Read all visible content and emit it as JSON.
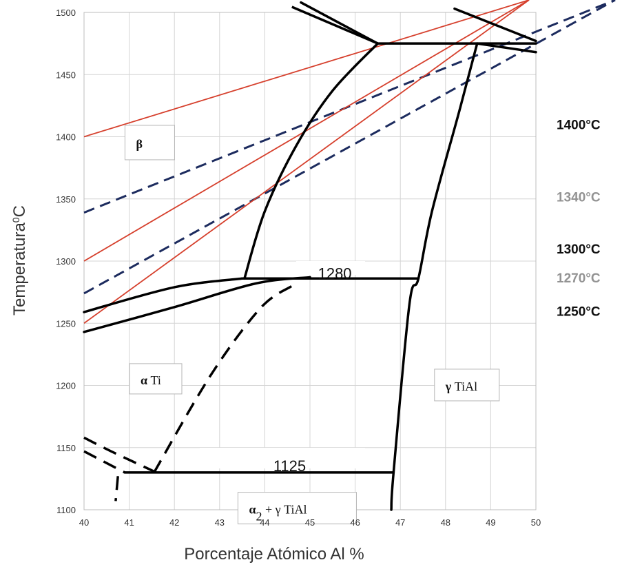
{
  "chart_data": {
    "type": "phase-diagram",
    "xlabel": "Porcentaje Atómico Al %",
    "ylabel_text": "Temperatura",
    "ylabel_sup": "0",
    "ylabel_unit": "C",
    "xlim": [
      40,
      50
    ],
    "ylim": [
      1100,
      1500
    ],
    "x_ticks": [
      40,
      41,
      42,
      43,
      44,
      45,
      46,
      47,
      48,
      49,
      50
    ],
    "y_ticks": [
      1100,
      1150,
      1200,
      1250,
      1300,
      1350,
      1400,
      1450,
      1500
    ],
    "grid": true,
    "phase_labels": [
      {
        "greek": "β",
        "rest": "",
        "x": 41.15,
        "y": 1392
      },
      {
        "greek": "α",
        "rest": " Ti",
        "x": 41.25,
        "y": 1202
      },
      {
        "greek": "γ",
        "rest": " TiAl",
        "x": 48.0,
        "y": 1197
      },
      {
        "greek": "α",
        "sub": "2",
        "rest": " + γ TiAl",
        "x": 43.65,
        "y": 1098
      }
    ],
    "invariant_labels": [
      {
        "text": "1280",
        "x": 45.55,
        "y": 1286
      },
      {
        "text": "1125",
        "x": 44.55,
        "y": 1131
      }
    ],
    "phase_boundaries": [
      {
        "name": "beta-alpha-left",
        "style": "solid",
        "points": [
          [
            41.3,
            1430
          ],
          [
            42.0,
            1478
          ],
          [
            43.3,
            1494
          ]
        ]
      },
      {
        "name": "beta-alpha-right",
        "style": "solid",
        "points": [
          [
            44.2,
            1516
          ],
          [
            44.8,
            1516
          ],
          [
            45.3,
            1516
          ]
        ]
      },
      {
        "name": "peritectic-1475-left",
        "style": "solid",
        "points": [
          [
            44.8,
            1508
          ],
          [
            46.5,
            1475
          ]
        ]
      },
      {
        "name": "peritectic-1475-line",
        "style": "solid",
        "points": [
          [
            46.5,
            1475
          ],
          [
            50.0,
            1475
          ]
        ]
      },
      {
        "name": "upper-right-1",
        "style": "solid",
        "points": [
          [
            48.2,
            1503
          ],
          [
            50.0,
            1477
          ]
        ]
      },
      {
        "name": "upper-right-2",
        "style": "solid",
        "points": [
          [
            48.7,
            1475
          ],
          [
            50.0,
            1468
          ]
        ]
      },
      {
        "name": "alpha-beta-transus",
        "style": "solid",
        "points": [
          [
            43.55,
            1286
          ],
          [
            44.0,
            1340
          ],
          [
            44.7,
            1393
          ],
          [
            45.5,
            1437
          ],
          [
            46.5,
            1475
          ]
        ]
      },
      {
        "name": "gamma-solvus",
        "style": "solid",
        "points": [
          [
            46.8,
            1100
          ],
          [
            46.85,
            1130
          ],
          [
            47.2,
            1265
          ],
          [
            47.4,
            1286
          ],
          [
            47.7,
            1340
          ],
          [
            48.3,
            1420
          ],
          [
            48.7,
            1475
          ]
        ]
      },
      {
        "name": "eutectoid-1280",
        "style": "solid",
        "points": [
          [
            43.5,
            1286
          ],
          [
            47.4,
            1286
          ]
        ]
      },
      {
        "name": "alpha-upper",
        "style": "solid",
        "points": [
          [
            40.0,
            1259
          ],
          [
            42.0,
            1279
          ],
          [
            43.5,
            1286
          ]
        ]
      },
      {
        "name": "alpha-lower",
        "style": "solid",
        "points": [
          [
            40.0,
            1243
          ],
          [
            42.0,
            1263
          ],
          [
            43.8,
            1282
          ],
          [
            45.0,
            1287
          ]
        ]
      },
      {
        "name": "eutectoid-1125",
        "style": "solid",
        "points": [
          [
            40.9,
            1130
          ],
          [
            46.85,
            1130
          ]
        ]
      },
      {
        "name": "alpha2-dashed",
        "style": "dashed",
        "points": [
          [
            41.55,
            1130
          ],
          [
            42.8,
            1208
          ],
          [
            43.9,
            1262
          ],
          [
            44.6,
            1280
          ]
        ]
      },
      {
        "name": "alpha2-left-dashed-1",
        "style": "dashed",
        "points": [
          [
            40.0,
            1158
          ],
          [
            40.6,
            1147
          ],
          [
            41.6,
            1130
          ]
        ]
      },
      {
        "name": "alpha2-left-dashed-2",
        "style": "dashed",
        "points": [
          [
            40.0,
            1147
          ],
          [
            40.9,
            1130
          ]
        ]
      },
      {
        "name": "alpha2-bottom-dashed",
        "style": "dashed",
        "points": [
          [
            40.75,
            1127
          ],
          [
            40.7,
            1107
          ]
        ]
      }
    ],
    "annealing_temperatures": [
      {
        "label": "1400°C",
        "value": 1400,
        "color": "#d6402d",
        "style": "solid",
        "label_color": "#111111"
      },
      {
        "label": "1340°C",
        "value": 1339,
        "color": "#1c2b5e",
        "style": "dashed",
        "label_color": "#939393"
      },
      {
        "label": "1300°C",
        "value": 1300,
        "color": "#d6402d",
        "style": "solid",
        "label_color": "#111111"
      },
      {
        "label": "1270°C",
        "value": 1274,
        "color": "#1c2b5e",
        "style": "dashed",
        "label_color": "#939393"
      },
      {
        "label": "1250°C",
        "value": 1250,
        "color": "#d6402d",
        "style": "solid",
        "label_color": "#111111"
      }
    ]
  }
}
